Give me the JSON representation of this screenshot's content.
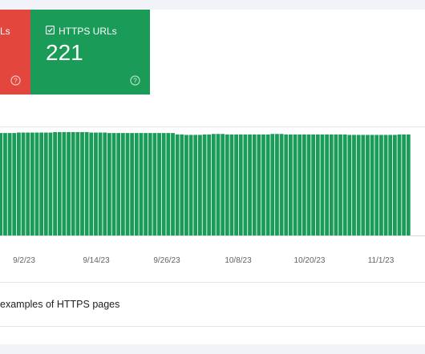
{
  "summary": {
    "red_tile": {
      "label": "Non-HTTPS URLs",
      "label_visible": "Ls",
      "color": "#e3463c",
      "icon": "help-icon"
    },
    "green_tile": {
      "label": "HTTPS URLs",
      "value": "221",
      "color": "#1a9b57",
      "icon": "checkbox-checked-icon",
      "help_icon": "help-icon"
    }
  },
  "chart_data": {
    "type": "bar",
    "ylim": [
      0,
      235
    ],
    "x_ticks": [
      "9/2/23",
      "9/14/23",
      "9/26/23",
      "10/8/23",
      "10/20/23",
      "11/1/23"
    ],
    "series": [
      {
        "color": "#1a9b57",
        "values": [
          221,
          221,
          221,
          221,
          222,
          222,
          222,
          222,
          222,
          222,
          222,
          222,
          223,
          223,
          223,
          223,
          223,
          223,
          223,
          223,
          222,
          222,
          222,
          222,
          221,
          221,
          221,
          221,
          221,
          221,
          221,
          221,
          221,
          221,
          221,
          221,
          221,
          221,
          221,
          218,
          218,
          217,
          217,
          217,
          217,
          218,
          218,
          219,
          219,
          219,
          218,
          218,
          218,
          218,
          218,
          218,
          218,
          218,
          218,
          218,
          219,
          219,
          219,
          218,
          218,
          218,
          218,
          218,
          218,
          218,
          218,
          218,
          218,
          218,
          218,
          218,
          218,
          217,
          217,
          217,
          217,
          217,
          217,
          217,
          217,
          217,
          217,
          217,
          218,
          218,
          218
        ]
      }
    ]
  },
  "examples": {
    "label_visible": "examples of HTTPS pages"
  }
}
